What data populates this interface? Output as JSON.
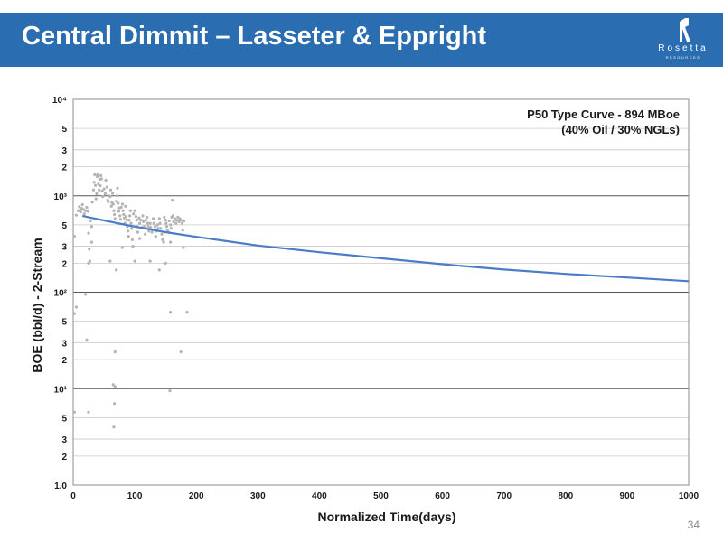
{
  "slide": {
    "title": "Central Dimmit – Lasseter & Eppright",
    "page_number": "34",
    "logo": {
      "word": "Rosetta",
      "sub": "RESOURCES",
      "icon": "rosetta-r-logo-icon"
    },
    "accent_color": "#2a6db0"
  },
  "chart_data": {
    "type": "scatter",
    "annotation": [
      "P50 Type Curve - 894 MBoe",
      "(40% Oil / 30% NGLs)"
    ],
    "xlabel": "Normalized Time(days)",
    "ylabel": "BOE (bbl/d) - 2-Stream",
    "xlim": [
      0,
      1000
    ],
    "ylim": [
      1,
      10000
    ],
    "y_scale": "log",
    "grid": true,
    "x_ticks": [
      0,
      100,
      200,
      300,
      400,
      500,
      600,
      700,
      800,
      900,
      1000
    ],
    "y_tick_labels": [
      {
        "v": 1,
        "t": "1.0"
      },
      {
        "v": 2,
        "t": "2"
      },
      {
        "v": 3,
        "t": "3"
      },
      {
        "v": 5,
        "t": "5"
      },
      {
        "v": 10,
        "t": "10¹"
      },
      {
        "v": 20,
        "t": "2"
      },
      {
        "v": 30,
        "t": "3"
      },
      {
        "v": 50,
        "t": "5"
      },
      {
        "v": 100,
        "t": "10²"
      },
      {
        "v": 200,
        "t": "2"
      },
      {
        "v": 300,
        "t": "3"
      },
      {
        "v": 500,
        "t": "5"
      },
      {
        "v": 1000,
        "t": "10³"
      },
      {
        "v": 2000,
        "t": "2"
      },
      {
        "v": 3000,
        "t": "3"
      },
      {
        "v": 5000,
        "t": "5"
      },
      {
        "v": 10000,
        "t": "10⁴"
      }
    ],
    "series": [
      {
        "name": "",
        "kind": "scatter",
        "color": "#b3b3b3",
        "points": [
          [
            2,
            380
          ],
          [
            5,
            630
          ],
          [
            8,
            700
          ],
          [
            10,
            770
          ],
          [
            12,
            680
          ],
          [
            14,
            740
          ],
          [
            15,
            810
          ],
          [
            17,
            720
          ],
          [
            18,
            650
          ],
          [
            20,
            700
          ],
          [
            22,
            760
          ],
          [
            24,
            690
          ],
          [
            25,
            410
          ],
          [
            26,
            280
          ],
          [
            27,
            210
          ],
          [
            28,
            550
          ],
          [
            30,
            480
          ],
          [
            31,
            860
          ],
          [
            33,
            1150
          ],
          [
            34,
            1380
          ],
          [
            35,
            1650
          ],
          [
            36,
            1280
          ],
          [
            37,
            930
          ],
          [
            38,
            1050
          ],
          [
            39,
            1580
          ],
          [
            40,
            1660
          ],
          [
            41,
            1320
          ],
          [
            42,
            1150
          ],
          [
            43,
            1480
          ],
          [
            44,
            1270
          ],
          [
            45,
            1620
          ],
          [
            46,
            1500
          ],
          [
            47,
            1120
          ],
          [
            48,
            980
          ],
          [
            50,
            1180
          ],
          [
            52,
            1050
          ],
          [
            53,
            1450
          ],
          [
            55,
            1230
          ],
          [
            56,
            900
          ],
          [
            57,
            870
          ],
          [
            58,
            1000
          ],
          [
            60,
            980
          ],
          [
            61,
            1150
          ],
          [
            62,
            780
          ],
          [
            63,
            850
          ],
          [
            64,
            1060
          ],
          [
            65,
            820
          ],
          [
            66,
            700
          ],
          [
            67,
            640
          ],
          [
            68,
            580
          ],
          [
            70,
            880
          ],
          [
            71,
            1000
          ],
          [
            72,
            1200
          ],
          [
            73,
            840
          ],
          [
            74,
            690
          ],
          [
            75,
            750
          ],
          [
            76,
            620
          ],
          [
            77,
            570
          ],
          [
            78,
            760
          ],
          [
            80,
            820
          ],
          [
            81,
            700
          ],
          [
            82,
            640
          ],
          [
            83,
            590
          ],
          [
            84,
            520
          ],
          [
            85,
            780
          ],
          [
            86,
            610
          ],
          [
            87,
            560
          ],
          [
            88,
            480
          ],
          [
            89,
            430
          ],
          [
            90,
            380
          ],
          [
            91,
            560
          ],
          [
            92,
            620
          ],
          [
            93,
            700
          ],
          [
            94,
            520
          ],
          [
            95,
            460
          ],
          [
            96,
            350
          ],
          [
            97,
            300
          ],
          [
            98,
            650
          ],
          [
            100,
            700
          ],
          [
            102,
            610
          ],
          [
            103,
            560
          ],
          [
            104,
            480
          ],
          [
            105,
            420
          ],
          [
            107,
            590
          ],
          [
            108,
            520
          ],
          [
            110,
            560
          ],
          [
            112,
            470
          ],
          [
            113,
            620
          ],
          [
            114,
            540
          ],
          [
            115,
            480
          ],
          [
            117,
            400
          ],
          [
            118,
            560
          ],
          [
            120,
            600
          ],
          [
            121,
            520
          ],
          [
            122,
            480
          ],
          [
            123,
            430
          ],
          [
            125,
            520
          ],
          [
            126,
            470
          ],
          [
            128,
            420
          ],
          [
            130,
            580
          ],
          [
            131,
            520
          ],
          [
            133,
            480
          ],
          [
            134,
            380
          ],
          [
            135,
            430
          ],
          [
            137,
            500
          ],
          [
            138,
            460
          ],
          [
            140,
            580
          ],
          [
            141,
            520
          ],
          [
            142,
            460
          ],
          [
            144,
            400
          ],
          [
            145,
            350
          ],
          [
            147,
            330
          ],
          [
            148,
            600
          ],
          [
            150,
            560
          ],
          [
            151,
            520
          ],
          [
            152,
            480
          ],
          [
            153,
            440
          ],
          [
            155,
            420
          ],
          [
            156,
            550
          ],
          [
            158,
            500
          ],
          [
            159,
            460
          ],
          [
            160,
            600
          ],
          [
            161,
            900
          ],
          [
            162,
            620
          ],
          [
            163,
            540
          ],
          [
            165,
            580
          ],
          [
            167,
            520
          ],
          [
            168,
            560
          ],
          [
            170,
            600
          ],
          [
            172,
            540
          ],
          [
            173,
            580
          ],
          [
            175,
            560
          ],
          [
            177,
            520
          ],
          [
            180,
            550
          ],
          [
            179,
            290
          ],
          [
            158,
            330
          ],
          [
            178,
            440
          ],
          [
            140,
            170
          ],
          [
            125,
            210
          ],
          [
            108,
            360
          ],
          [
            80,
            290
          ],
          [
            25,
            200
          ],
          [
            30,
            330
          ],
          [
            60,
            210
          ],
          [
            100,
            210
          ],
          [
            150,
            200
          ],
          [
            70,
            170
          ],
          [
            20,
            95
          ],
          [
            5,
            70
          ],
          [
            2,
            60
          ],
          [
            22,
            32
          ],
          [
            158,
            62
          ],
          [
            185,
            62
          ],
          [
            68,
            24
          ],
          [
            175,
            24
          ],
          [
            25,
            5.7
          ],
          [
            2,
            5.7
          ],
          [
            65,
            11
          ],
          [
            68,
            10.5
          ],
          [
            67,
            7
          ],
          [
            66,
            4
          ],
          [
            157,
            9.5
          ]
        ]
      },
      {
        "name": "",
        "kind": "line",
        "color": "#4a7cc8",
        "points": [
          [
            15,
            620
          ],
          [
            30,
            590
          ],
          [
            50,
            555
          ],
          [
            75,
            515
          ],
          [
            100,
            480
          ],
          [
            150,
            420
          ],
          [
            200,
            375
          ],
          [
            300,
            305
          ],
          [
            400,
            260
          ],
          [
            500,
            225
          ],
          [
            600,
            195
          ],
          [
            700,
            172
          ],
          [
            800,
            155
          ],
          [
            900,
            142
          ],
          [
            1000,
            130
          ]
        ]
      }
    ]
  }
}
